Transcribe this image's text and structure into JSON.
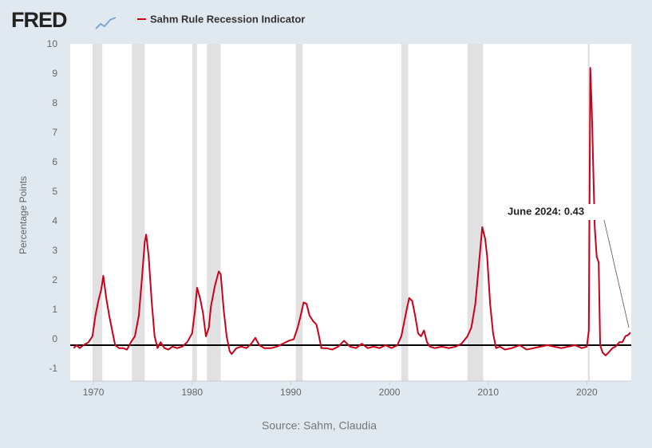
{
  "chart_data": {
    "type": "line",
    "brand": "FRED",
    "title": "Sahm Rule Recession Indicator",
    "y_label": "Percentage Points",
    "source": "Source: Sahm, Claudia",
    "annotation": {
      "text": "June 2024: 0.43",
      "x": 2024.42,
      "y": 0.43
    },
    "xlim": [
      1967.65,
      2024.5
    ],
    "xticks": [
      1970,
      1980,
      1990,
      2000,
      2010,
      2020
    ],
    "ylim": [
      -1,
      10
    ],
    "yticks": [
      -1,
      0,
      1,
      2,
      3,
      4,
      5,
      6,
      7,
      8,
      9,
      10
    ],
    "hline": 0,
    "recessions": [
      [
        1969.9,
        1970.9
      ],
      [
        1973.9,
        1975.2
      ],
      [
        1980.0,
        1980.5
      ],
      [
        1981.5,
        1982.9
      ],
      [
        1990.5,
        1991.2
      ],
      [
        2001.2,
        2001.9
      ],
      [
        2007.9,
        2009.5
      ],
      [
        2020.1,
        2020.3
      ]
    ],
    "x": [
      1968.0,
      1968.3,
      1968.6,
      1969.0,
      1969.5,
      1969.9,
      1970.2,
      1970.5,
      1970.8,
      1971.0,
      1971.3,
      1971.6,
      1971.9,
      1972.2,
      1972.6,
      1973.0,
      1973.4,
      1973.8,
      1974.2,
      1974.6,
      1974.9,
      1975.2,
      1975.35,
      1975.6,
      1975.9,
      1976.2,
      1976.5,
      1976.8,
      1977.2,
      1977.6,
      1978.0,
      1978.5,
      1979.0,
      1979.5,
      1980.0,
      1980.3,
      1980.5,
      1980.8,
      1981.1,
      1981.4,
      1981.7,
      1981.9,
      1982.3,
      1982.7,
      1982.9,
      1983.2,
      1983.5,
      1983.8,
      1984.0,
      1984.5,
      1985.0,
      1985.5,
      1986.0,
      1986.4,
      1986.8,
      1987.3,
      1988.0,
      1988.6,
      1989.2,
      1989.8,
      1990.3,
      1990.7,
      1991.0,
      1991.3,
      1991.6,
      1991.9,
      1992.3,
      1992.6,
      1992.8,
      1993.1,
      1993.6,
      1994.2,
      1994.8,
      1995.4,
      1996.0,
      1996.6,
      1997.2,
      1997.8,
      1998.4,
      1999.0,
      1999.6,
      2000.2,
      2000.8,
      2001.2,
      2001.5,
      2001.8,
      2002.0,
      2002.3,
      2002.6,
      2002.9,
      2003.2,
      2003.5,
      2003.8,
      2004.1,
      2004.6,
      2005.3,
      2006.0,
      2006.7,
      2007.3,
      2007.9,
      2008.3,
      2008.7,
      2009.0,
      2009.4,
      2009.7,
      2009.9,
      2010.2,
      2010.5,
      2010.8,
      2011.2,
      2011.7,
      2012.4,
      2013.2,
      2013.9,
      2014.6,
      2015.3,
      2016.0,
      2016.7,
      2017.4,
      2018.1,
      2018.8,
      2019.5,
      2020.0,
      2020.2,
      2020.35,
      2020.5,
      2020.8,
      2021.0,
      2021.2,
      2021.35,
      2021.6,
      2021.9,
      2022.2,
      2022.6,
      2022.9,
      2023.3,
      2023.6,
      2023.9,
      2024.2,
      2024.42
    ],
    "series": [
      {
        "name": "Sahm Rule Recession Indicator",
        "color": "#cc0019",
        "values": [
          -0.1,
          0.0,
          -0.1,
          0.0,
          0.1,
          0.3,
          1.0,
          1.5,
          1.9,
          2.35,
          1.6,
          1.0,
          0.5,
          0.0,
          -0.1,
          -0.1,
          -0.15,
          0.1,
          0.3,
          1.0,
          2.2,
          3.5,
          3.75,
          3.0,
          1.5,
          0.3,
          -0.1,
          0.1,
          -0.1,
          -0.15,
          -0.05,
          -0.1,
          -0.05,
          0.1,
          0.4,
          1.2,
          1.95,
          1.6,
          1.1,
          0.3,
          0.6,
          1.3,
          2.0,
          2.5,
          2.4,
          1.2,
          0.3,
          -0.2,
          -0.3,
          -0.1,
          -0.05,
          -0.1,
          0.05,
          0.25,
          0.0,
          -0.1,
          -0.1,
          -0.05,
          0.05,
          0.15,
          0.2,
          0.6,
          1.0,
          1.45,
          1.4,
          1.0,
          0.8,
          0.7,
          0.4,
          -0.1,
          -0.1,
          -0.15,
          -0.05,
          0.15,
          -0.05,
          -0.1,
          0.05,
          -0.1,
          -0.05,
          -0.1,
          0.0,
          -0.1,
          0.0,
          0.3,
          0.8,
          1.3,
          1.6,
          1.5,
          1.0,
          0.4,
          0.3,
          0.5,
          0.1,
          -0.05,
          -0.1,
          -0.05,
          -0.1,
          -0.05,
          0.05,
          0.3,
          0.6,
          1.4,
          2.5,
          4.0,
          3.6,
          3.0,
          1.4,
          0.4,
          -0.1,
          -0.05,
          -0.15,
          -0.1,
          0.0,
          -0.15,
          -0.1,
          -0.05,
          0.0,
          -0.05,
          -0.1,
          -0.05,
          0.0,
          -0.1,
          -0.05,
          0.5,
          9.4,
          8.0,
          4.0,
          3.0,
          2.8,
          0.0,
          -0.25,
          -0.35,
          -0.25,
          -0.1,
          -0.05,
          0.1,
          0.1,
          0.3,
          0.35,
          0.43
        ]
      }
    ]
  }
}
